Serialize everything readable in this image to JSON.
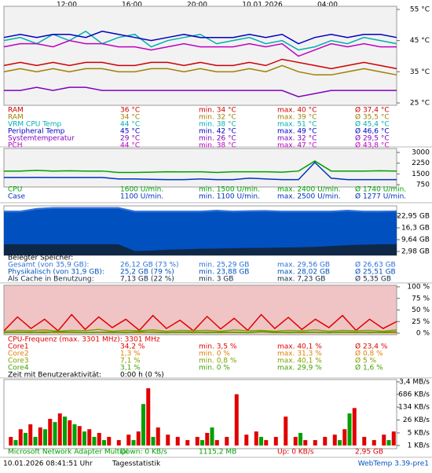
{
  "time_labels": [
    "12:00",
    "16:00",
    "20:00",
    "10.01.2026",
    "04:00"
  ],
  "chart_data": [
    {
      "type": "line",
      "ylim": [
        25,
        55
      ],
      "yticks": [
        {
          "value": 55,
          "label": "55 °C"
        },
        {
          "value": 45,
          "label": "45 °C"
        },
        {
          "value": 35,
          "label": "35 °C"
        },
        {
          "value": 25,
          "label": "25 °C"
        }
      ],
      "series": [
        {
          "name": "RAM",
          "color": "#d00000",
          "current": "36 °C",
          "min": "min. 34 °C",
          "max": "max. 40 °C",
          "avg": "Ø 37,4 °C",
          "values": [
            37,
            38,
            37,
            38,
            37,
            38,
            38,
            37,
            37,
            38,
            38,
            37,
            38,
            37,
            37,
            38,
            37,
            39,
            38,
            37,
            36,
            37,
            38,
            37,
            36
          ]
        },
        {
          "name": "RAM",
          "color": "#a08000",
          "current": "34 °C",
          "min": "min. 32 °C",
          "max": "max. 39 °C",
          "avg": "Ø 35,5 °C",
          "values": [
            35,
            36,
            35,
            36,
            35,
            36,
            36,
            35,
            35,
            36,
            36,
            35,
            36,
            35,
            35,
            36,
            35,
            37,
            35,
            34,
            34,
            35,
            36,
            35,
            34
          ]
        },
        {
          "name": "VRM CPU Temp",
          "color": "#00b0b0",
          "current": "44 °C",
          "min": "min. 38 °C",
          "max": "max. 51 °C",
          "avg": "Ø 45,4 °C",
          "values": [
            45,
            46,
            44,
            47,
            45,
            48,
            44,
            46,
            47,
            43,
            45,
            46,
            47,
            44,
            45,
            46,
            44,
            45,
            42,
            43,
            45,
            44,
            46,
            45,
            44
          ]
        },
        {
          "name": "Peripheral Temp",
          "color": "#0000c0",
          "current": "45 °C",
          "min": "min. 42 °C",
          "max": "max. 49 °C",
          "avg": "Ø 46,6 °C",
          "values": [
            46,
            47,
            46,
            47,
            47,
            46,
            48,
            47,
            46,
            45,
            46,
            47,
            46,
            46,
            46,
            47,
            46,
            47,
            44,
            46,
            47,
            46,
            47,
            47,
            46
          ]
        },
        {
          "name": "Systemtemperatur",
          "color": "#8000c0",
          "current": "29 °C",
          "min": "min. 26 °C",
          "max": "max. 32 °C",
          "avg": "Ø 29,5 °C",
          "values": [
            29,
            29,
            30,
            29,
            30,
            30,
            29,
            29,
            29,
            29,
            29,
            29,
            29,
            29,
            29,
            29,
            29,
            29,
            27,
            28,
            29,
            29,
            29,
            29,
            29
          ]
        },
        {
          "name": "PCH",
          "color": "#c000c0",
          "current": "44 °C",
          "min": "min. 38 °C",
          "max": "max. 47 °C",
          "avg": "Ø 43,8 °C",
          "values": [
            43,
            44,
            44,
            43,
            45,
            44,
            44,
            43,
            43,
            42,
            43,
            44,
            43,
            43,
            43,
            44,
            43,
            44,
            40,
            42,
            44,
            43,
            44,
            43,
            43
          ]
        }
      ]
    },
    {
      "type": "line",
      "ylim": [
        750,
        3000
      ],
      "yticks": [
        3000,
        2250,
        1500,
        750
      ],
      "series": [
        {
          "name": "CPU",
          "color": "#00a000",
          "current": "1600 U/min.",
          "min": "min. 1500 U/min.",
          "max": "max. 2400 U/min.",
          "avg": "Ø 1740 U/min.",
          "values": [
            1700,
            1700,
            1750,
            1700,
            1720,
            1700,
            1700,
            1600,
            1600,
            1620,
            1650,
            1640,
            1650,
            1600,
            1650,
            1650,
            1650,
            1620,
            1700,
            2400,
            1700,
            1700,
            1700,
            1720,
            1700
          ]
        },
        {
          "name": "Case",
          "color": "#0030c0",
          "current": "1100 U/min.",
          "min": "min. 1100 U/min.",
          "max": "max. 2500 U/min.",
          "avg": "Ø 1277 U/min.",
          "values": [
            1250,
            1250,
            1260,
            1250,
            1250,
            1250,
            1250,
            1150,
            1150,
            1120,
            1100,
            1100,
            1150,
            1100,
            1100,
            1200,
            1150,
            1100,
            1100,
            2300,
            1200,
            1100,
            1100,
            1100,
            1100
          ]
        }
      ]
    },
    {
      "type": "area",
      "title": "Belegter Speicher:",
      "ylim": [
        0.76,
        28.7
      ],
      "yticks": [
        {
          "value": 22.95,
          "label": "22,95 GB"
        },
        {
          "value": 16.3,
          "label": "16,3 GB"
        },
        {
          "value": 9.64,
          "label": "9,64 GB"
        },
        {
          "value": 2.98,
          "label": "2,98 GB"
        }
      ],
      "series": [
        {
          "name": "Gesamt (von 35,9 GB):",
          "color": "#2f6fd8",
          "current": "26,12 GB (73 %)",
          "min": "min. 25,29 GB",
          "max": "max. 29,56 GB",
          "avg": "Ø 26,63 GB",
          "values": [
            26,
            26,
            27.5,
            28,
            28,
            28,
            28,
            28,
            26,
            26,
            26,
            26,
            26,
            26.5,
            26,
            26.2,
            26.3,
            26,
            26,
            26,
            26,
            26.5,
            26,
            26,
            26.1
          ]
        },
        {
          "name": "Physikalisch (von 31,9 GB):",
          "color": "#0050c0",
          "current": "25,2 GB (79 %)",
          "min": "min. 23,88 GB",
          "max": "max. 28,02 GB",
          "avg": "Ø 25,51 GB",
          "values": [
            25,
            25,
            26.5,
            27,
            27,
            27,
            27,
            27,
            25,
            25,
            25,
            25,
            25,
            25.5,
            25,
            25.2,
            25.3,
            25,
            25,
            25,
            25,
            25.5,
            25,
            25,
            25.2
          ]
        },
        {
          "name": "Als Cache in Benutzung:",
          "color": "#102848",
          "current": "7,13 GB (22 %)",
          "min": "min. 3 GB",
          "max": "max. 7,23 GB",
          "avg": "Ø 5,35 GB",
          "values": [
            7,
            7,
            7,
            7,
            7,
            7,
            7,
            7,
            3.2,
            3.5,
            4,
            4.2,
            4.5,
            4.6,
            4.8,
            5,
            5,
            5.2,
            5.3,
            5.5,
            6,
            6.5,
            6.8,
            7,
            7.1
          ]
        }
      ]
    },
    {
      "type": "line",
      "title": "CPU-Frequenz (max. 3301 MHz): 3301 MHz",
      "note": "Zeit mit Benutzeraktivität:",
      "note_value": "0:00 h (0 %)",
      "ylim": [
        0,
        100
      ],
      "yticks": [
        {
          "value": 100,
          "label": "100 %"
        },
        {
          "value": 75,
          "label": "75 %"
        },
        {
          "value": 50,
          "label": "50 %"
        },
        {
          "value": 25,
          "label": "25 %"
        },
        {
          "value": 0,
          "label": "0 %"
        }
      ],
      "series": [
        {
          "name": "Core1",
          "color": "#e00000",
          "current": "34,2 %",
          "min": "min. 3,5 %",
          "max": "max. 40,1 %",
          "avg": "Ø 23,4 %",
          "values": [
            5,
            35,
            10,
            30,
            5,
            40,
            8,
            35,
            12,
            30,
            6,
            38,
            10,
            28,
            5,
            36,
            9,
            32,
            6,
            40,
            10,
            34,
            8,
            30,
            12,
            38,
            6,
            30,
            10,
            25
          ]
        },
        {
          "name": "Core2",
          "color": "#e08000",
          "current": "1,3 %",
          "min": "min. 0 %",
          "max": "max. 31,3 %",
          "avg": "Ø 0,8 %",
          "values": [
            1,
            2,
            1,
            3,
            1,
            2,
            1,
            2,
            1,
            2,
            1,
            3,
            1,
            2,
            1,
            2,
            1,
            2,
            1,
            3,
            1,
            2,
            1,
            2,
            1,
            2,
            1,
            2,
            1,
            1
          ]
        },
        {
          "name": "Core3",
          "color": "#80a000",
          "current": "7,1 %",
          "min": "min. 0,8 %",
          "max": "max. 40,1 %",
          "avg": "Ø 5 %",
          "values": [
            4,
            6,
            5,
            7,
            4,
            6,
            5,
            8,
            4,
            6,
            5,
            7,
            4,
            6,
            5,
            6,
            4,
            7,
            5,
            6,
            4,
            6,
            5,
            7,
            4,
            6,
            5,
            6,
            4,
            7
          ]
        },
        {
          "name": "Core4",
          "color": "#40a000",
          "current": "3,1 %",
          "min": "min. 0 %",
          "max": "max. 29,9 %",
          "avg": "Ø 1,6 %",
          "values": [
            1,
            2,
            2,
            1,
            3,
            2,
            1,
            2,
            2,
            1,
            3,
            2,
            1,
            2,
            2,
            1,
            2,
            2,
            1,
            3,
            2,
            1,
            2,
            2,
            1,
            2,
            2,
            1,
            2,
            3
          ]
        }
      ]
    },
    {
      "type": "bar",
      "title": "Microsoft Network Adapter Multipl",
      "log_scale": true,
      "ylim": [
        1,
        3400
      ],
      "yticks": [
        {
          "value": 3400,
          "label": "3,4 MB/s"
        },
        {
          "value": 686,
          "label": "686 KB/s"
        },
        {
          "value": 134,
          "label": "134 KB/s"
        },
        {
          "value": 26,
          "label": "26 KB/s"
        },
        {
          "value": 5,
          "label": "5 KB/s"
        },
        {
          "value": 1,
          "label": "1 KB/s"
        }
      ],
      "series": [
        {
          "name": "Down: 0 KB/s",
          "color": "#00a000",
          "total": "1115,2 MB",
          "values": [
            1,
            2,
            5,
            3,
            8,
            20,
            40,
            15,
            6,
            3,
            2,
            1,
            1,
            2,
            200,
            3,
            1,
            1,
            1,
            1,
            2,
            10,
            1,
            1,
            1,
            1,
            3,
            1,
            1,
            1,
            5,
            1,
            1,
            1,
            2,
            60,
            1,
            1,
            1,
            2
          ]
        },
        {
          "name": "Up: 0 KB/s",
          "color": "#e00000",
          "total": "2,95 GB",
          "values": [
            3,
            8,
            15,
            10,
            30,
            60,
            25,
            12,
            8,
            5,
            3,
            2,
            4,
            6,
            1500,
            10,
            4,
            3,
            2,
            3,
            5,
            2,
            3,
            700,
            4,
            6,
            2,
            3,
            40,
            3,
            2,
            2,
            3,
            4,
            8,
            120,
            3,
            2,
            4,
            6
          ]
        }
      ]
    }
  ],
  "status": {
    "timestamp": "10.01.2026 08:41:51 Uhr",
    "button": "Tagesstatistik",
    "version": "WebTemp 3.39-pre1"
  }
}
